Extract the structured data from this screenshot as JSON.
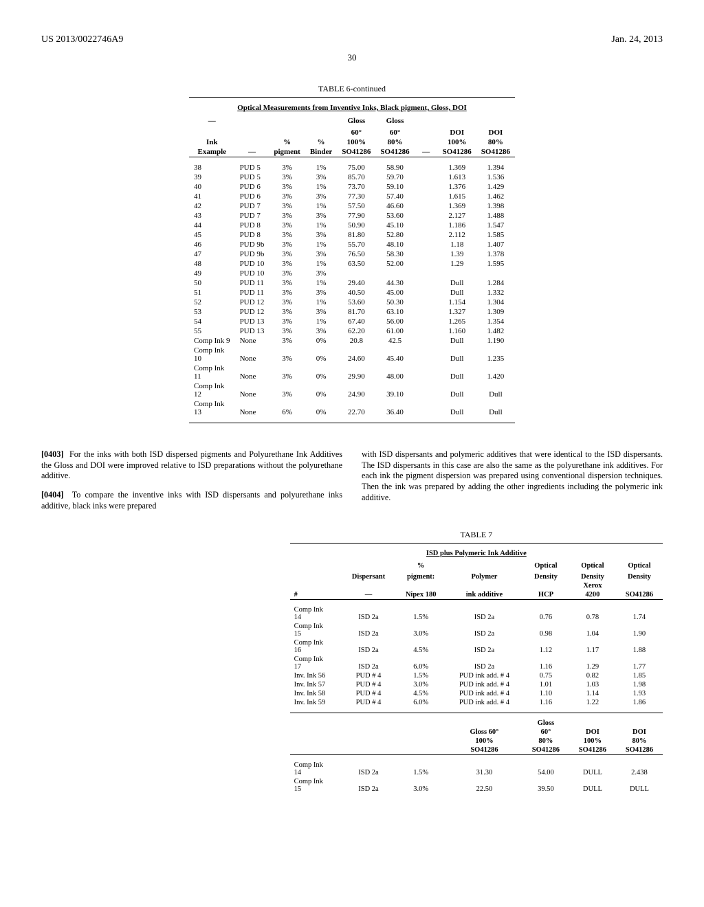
{
  "header": {
    "doc_number": "US 2013/0022746A9",
    "date": "Jan. 24, 2013",
    "page_number": "30"
  },
  "table6": {
    "title": "TABLE 6-continued",
    "subtitle": "Optical Measurements from Inventive Inks, Black pigment, Gloss, DOI",
    "columns": {
      "c1a": "—",
      "c1b": "Ink",
      "c1c": "Example",
      "c2": "—",
      "c3a": "%",
      "c3b": "pigment",
      "c4a": "%",
      "c4b": "Binder",
      "c5a": "Gloss",
      "c5b": "60°",
      "c5c": "100%",
      "c5d": "SO41286",
      "c6a": "Gloss",
      "c6b": "60°",
      "c6c": "80%",
      "c6d": "SO41286",
      "c7": "—",
      "c8a": "DOI",
      "c8b": "100%",
      "c8c": "SO41286",
      "c9a": "DOI",
      "c9b": "80%",
      "c9c": "SO41286"
    },
    "rows": [
      [
        "38",
        "PUD 5",
        "3%",
        "1%",
        "75.00",
        "58.90",
        "",
        "1.369",
        "1.394"
      ],
      [
        "39",
        "PUD 5",
        "3%",
        "3%",
        "85.70",
        "59.70",
        "",
        "1.613",
        "1.536"
      ],
      [
        "40",
        "PUD 6",
        "3%",
        "1%",
        "73.70",
        "59.10",
        "",
        "1.376",
        "1.429"
      ],
      [
        "41",
        "PUD 6",
        "3%",
        "3%",
        "77.30",
        "57.40",
        "",
        "1.615",
        "1.462"
      ],
      [
        "42",
        "PUD 7",
        "3%",
        "1%",
        "57.50",
        "46.60",
        "",
        "1.369",
        "1.398"
      ],
      [
        "43",
        "PUD 7",
        "3%",
        "3%",
        "77.90",
        "53.60",
        "",
        "2.127",
        "1.488"
      ],
      [
        "44",
        "PUD 8",
        "3%",
        "1%",
        "50.90",
        "45.10",
        "",
        "1.186",
        "1.547"
      ],
      [
        "45",
        "PUD 8",
        "3%",
        "3%",
        "81.80",
        "52.80",
        "",
        "2.112",
        "1.585"
      ],
      [
        "46",
        "PUD 9b",
        "3%",
        "1%",
        "55.70",
        "48.10",
        "",
        "1.18",
        "1.407"
      ],
      [
        "47",
        "PUD 9b",
        "3%",
        "3%",
        "76.50",
        "58.30",
        "",
        "1.39",
        "1.378"
      ],
      [
        "48",
        "PUD 10",
        "3%",
        "1%",
        "63.50",
        "52.00",
        "",
        "1.29",
        "1.595"
      ],
      [
        "49",
        "PUD 10",
        "3%",
        "3%",
        "",
        "",
        "",
        "",
        ""
      ],
      [
        "50",
        "PUD 11",
        "3%",
        "1%",
        "29.40",
        "44.30",
        "",
        "Dull",
        "1.284"
      ],
      [
        "51",
        "PUD 11",
        "3%",
        "3%",
        "40.50",
        "45.00",
        "",
        "Dull",
        "1.332"
      ],
      [
        "52",
        "PUD 12",
        "3%",
        "1%",
        "53.60",
        "50.30",
        "",
        "1.154",
        "1.304"
      ],
      [
        "53",
        "PUD 12",
        "3%",
        "3%",
        "81.70",
        "63.10",
        "",
        "1.327",
        "1.309"
      ],
      [
        "54",
        "PUD 13",
        "3%",
        "1%",
        "67.40",
        "56.00",
        "",
        "1.265",
        "1.354"
      ],
      [
        "55",
        "PUD 13",
        "3%",
        "3%",
        "62.20",
        "61.00",
        "",
        "1.160",
        "1.482"
      ],
      [
        "Comp Ink 9",
        "None",
        "3%",
        "0%",
        "20.8",
        "42.5",
        "",
        "Dull",
        "1.190"
      ],
      [
        "Comp Ink 10",
        "None",
        "3%",
        "0%",
        "24.60",
        "45.40",
        "",
        "Dull",
        "1.235"
      ],
      [
        "Comp Ink 11",
        "None",
        "3%",
        "0%",
        "29.90",
        "48.00",
        "",
        "Dull",
        "1.420"
      ],
      [
        "Comp Ink 12",
        "None",
        "3%",
        "0%",
        "24.90",
        "39.10",
        "",
        "Dull",
        "Dull"
      ],
      [
        "Comp Ink 13",
        "None",
        "6%",
        "0%",
        "22.70",
        "36.40",
        "",
        "Dull",
        "Dull"
      ]
    ]
  },
  "paragraphs": {
    "p1_num": "[0403]",
    "p1": "For the inks with both ISD dispersed pigments and Polyurethane Ink Additives the Gloss and DOI were improved relative to ISD preparations without the polyurethane additive.",
    "p2_num": "[0404]",
    "p2": "To compare the inventive inks with ISD dispersants and polyurethane inks additive, black inks were prepared",
    "p2_right": "with ISD dispersants and polymeric additives that were identical to the ISD dispersants. The ISD dispersants in this case are also the same as the polyurethane ink additives. For each ink the pigment dispersion was prepared using conventional dispersion techniques. Then the ink was prepared by adding the other ingredients including the polymeric ink additive."
  },
  "table7": {
    "title": "TABLE 7",
    "subtitle": "ISD plus Polymeric Ink Additive",
    "columns_a": {
      "c1": "#",
      "c2a": "Dispersant",
      "c2b": "—",
      "c3a": "%",
      "c3b": "pigment:",
      "c3c": "Nipex 180",
      "c4a": "Polymer",
      "c4b": "ink additive",
      "c5a": "Optical",
      "c5b": "Density",
      "c5c": "HCP",
      "c6a": "Optical",
      "c6b": "Density",
      "c6c": "Xerox",
      "c6d": "4200",
      "c7a": "Optical",
      "c7b": "Density",
      "c7c": "SO41286"
    },
    "rows_a": [
      [
        "Comp Ink 14",
        "ISD 2a",
        "1.5%",
        "ISD 2a",
        "0.76",
        "0.78",
        "1.74"
      ],
      [
        "Comp Ink 15",
        "ISD 2a",
        "3.0%",
        "ISD 2a",
        "0.98",
        "1.04",
        "1.90"
      ],
      [
        "Comp Ink 16",
        "ISD 2a",
        "4.5%",
        "ISD 2a",
        "1.12",
        "1.17",
        "1.88"
      ],
      [
        "Comp Ink 17",
        "ISD 2a",
        "6.0%",
        "ISD 2a",
        "1.16",
        "1.29",
        "1.77"
      ],
      [
        "Inv. Ink 56",
        "PUD # 4",
        "1.5%",
        "PUD ink add. # 4",
        "0.75",
        "0.82",
        "1.85"
      ],
      [
        "Inv. Ink 57",
        "PUD # 4",
        "3.0%",
        "PUD ink add. # 4",
        "1.01",
        "1.03",
        "1.98"
      ],
      [
        "Inv. Ink 58",
        "PUD # 4",
        "4.5%",
        "PUD ink add. # 4",
        "1.10",
        "1.14",
        "1.93"
      ],
      [
        "Inv. Ink 59",
        "PUD # 4",
        "6.0%",
        "PUD ink add. # 4",
        "1.16",
        "1.22",
        "1.86"
      ]
    ],
    "columns_b": {
      "c5a": "Gloss 60°",
      "c5b": "100%",
      "c5c": "SO41286",
      "c6a": "Gloss",
      "c6b": "60°",
      "c6c": "80%",
      "c6d": "SO41286",
      "c7a": "DOI",
      "c7b": "100%",
      "c7c": "SO41286",
      "c8a": "DOI",
      "c8b": "80%",
      "c8c": "SO41286"
    },
    "rows_b": [
      [
        "Comp Ink 14",
        "ISD 2a",
        "1.5%",
        "31.30",
        "54.00",
        "DULL",
        "2.438"
      ],
      [
        "Comp Ink 15",
        "ISD 2a",
        "3.0%",
        "22.50",
        "39.50",
        "DULL",
        "DULL"
      ]
    ]
  }
}
